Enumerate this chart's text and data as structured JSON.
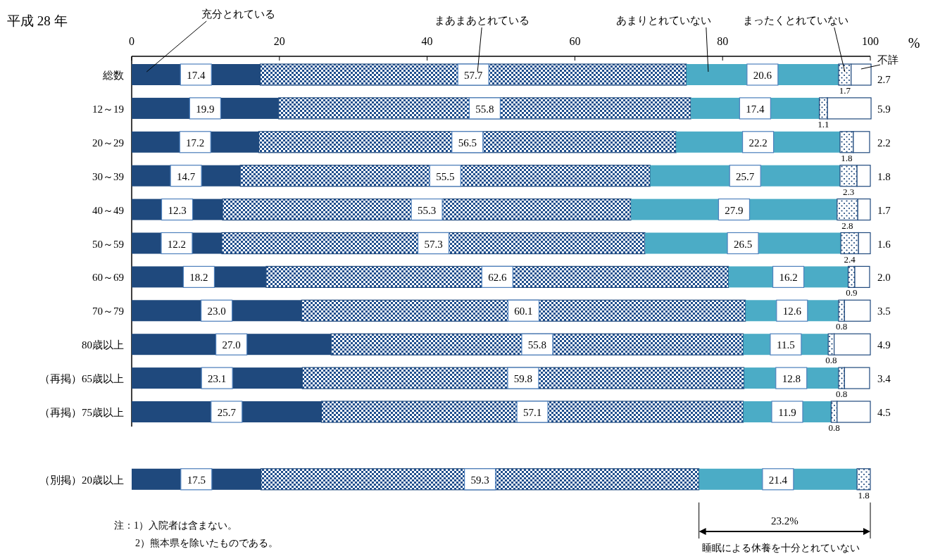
{
  "chart_data": {
    "type": "bar",
    "orientation": "horizontal",
    "stacked": true,
    "title": "平成 28 年",
    "xlabel": "%",
    "categories": [
      "総数",
      "12～19",
      "20～29",
      "30～39",
      "40～49",
      "50～59",
      "60～69",
      "70～79",
      "80歳以上",
      "（再掲）65歳以上",
      "（再掲）75歳以上",
      null,
      "（別掲）20歳以上"
    ],
    "series": [
      {
        "name": "充分とれている",
        "color": "#1f497d",
        "values": [
          17.4,
          19.9,
          17.2,
          14.7,
          12.3,
          12.2,
          18.2,
          23.0,
          27.0,
          23.1,
          25.7,
          null,
          17.5
        ],
        "value_labels": [
          "17.4",
          "19.9",
          "17.2",
          "14.7",
          "12.3",
          "12.2",
          "18.2",
          "23.0",
          "27.0",
          "23.1",
          "25.7",
          null,
          "17.5"
        ]
      },
      {
        "name": "まあまあとれている",
        "color": "#1f4e8c",
        "values": [
          57.7,
          55.8,
          56.5,
          55.5,
          55.3,
          57.3,
          62.6,
          60.1,
          55.8,
          59.8,
          57.1,
          null,
          59.3
        ],
        "value_labels": [
          "57.7",
          "55.8",
          "56.5",
          "55.5",
          "55.3",
          "57.3",
          "62.6",
          "60.1",
          "55.8",
          "59.8",
          "57.1",
          null,
          "59.3"
        ]
      },
      {
        "name": "あまりとれていない",
        "color": "#4bacc6",
        "values": [
          20.6,
          17.4,
          22.2,
          25.7,
          27.9,
          26.5,
          16.2,
          12.6,
          11.5,
          12.8,
          11.9,
          null,
          21.4
        ],
        "value_labels": [
          "20.6",
          "17.4",
          "22.2",
          "25.7",
          "27.9",
          "26.5",
          "16.2",
          "12.6",
          "11.5",
          "12.8",
          "11.9",
          null,
          "21.4"
        ]
      },
      {
        "name": "まったくとれていない",
        "color": "#1f497d",
        "values": [
          1.7,
          1.1,
          1.8,
          2.3,
          2.8,
          2.4,
          0.9,
          0.8,
          0.8,
          0.8,
          0.8,
          null,
          1.8
        ],
        "value_labels": [
          "1.7",
          "1.1",
          "1.8",
          "2.3",
          "2.8",
          "2.4",
          "0.9",
          "0.8",
          "0.8",
          "0.8",
          "0.8",
          null,
          "1.8"
        ]
      },
      {
        "name": "不詳",
        "color": "#ffffff",
        "values": [
          2.7,
          5.9,
          2.2,
          1.8,
          1.7,
          1.6,
          2.0,
          3.5,
          4.9,
          3.4,
          4.5,
          null,
          null
        ],
        "value_labels": [
          "2.7",
          "5.9",
          "2.2",
          "1.8",
          "1.7",
          "1.6",
          "2.0",
          "3.5",
          "4.9",
          "3.4",
          "4.5",
          null,
          null
        ]
      }
    ],
    "xlim": [
      0,
      100
    ],
    "xticks": [
      0,
      20,
      40,
      60,
      80,
      100
    ],
    "annotations": [
      "23.2%",
      "睡眠による休養を十分とれていない",
      "注：1）入院者は含まない。",
      "2）熊本県を除いたものである。"
    ]
  }
}
